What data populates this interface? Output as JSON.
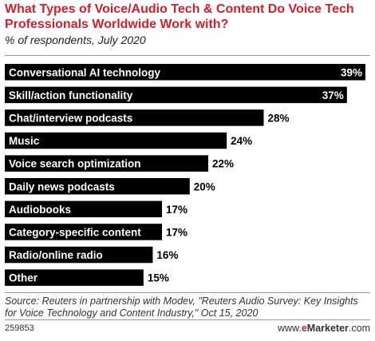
{
  "header": {
    "title": "What Types of Voice/Audio Tech & Content Do Voice Tech Professionals Worldwide Work with?",
    "subtitle": "% of respondents, July 2020"
  },
  "footer": {
    "source": "Source: Reuters in partnership with Modev, \"Reuters Audio Survey: Key Insights for Voice Technology and Content Industry,\" Oct 15, 2020",
    "chart_id": "259853",
    "brand_prefix": "www.",
    "brand_e": "e",
    "brand_name": "Marketer",
    "brand_suffix": ".com"
  },
  "chart_data": {
    "type": "bar",
    "orientation": "horizontal",
    "title": "What Types of Voice/Audio Tech & Content Do Voice Tech Professionals Worldwide Work with?",
    "subtitle": "% of respondents, July 2020",
    "categories": [
      "Conversational AI technology",
      "Skill/action functionality",
      "Chat/interview podcasts",
      "Music",
      "Voice search optimization",
      "Daily news podcasts",
      "Audiobooks",
      "Category-specific content",
      "Radio/online radio",
      "Other"
    ],
    "values": [
      39,
      37,
      28,
      24,
      22,
      20,
      17,
      17,
      16,
      15
    ],
    "labels": [
      "39%",
      "37%",
      "28%",
      "24%",
      "22%",
      "20%",
      "17%",
      "17%",
      "16%",
      "15%"
    ],
    "xlim": [
      0,
      39
    ],
    "grid": false,
    "legend": "none",
    "bar_color": "#000000",
    "label_color_inside": "#ffffff",
    "label_color_outside": "#000000"
  }
}
